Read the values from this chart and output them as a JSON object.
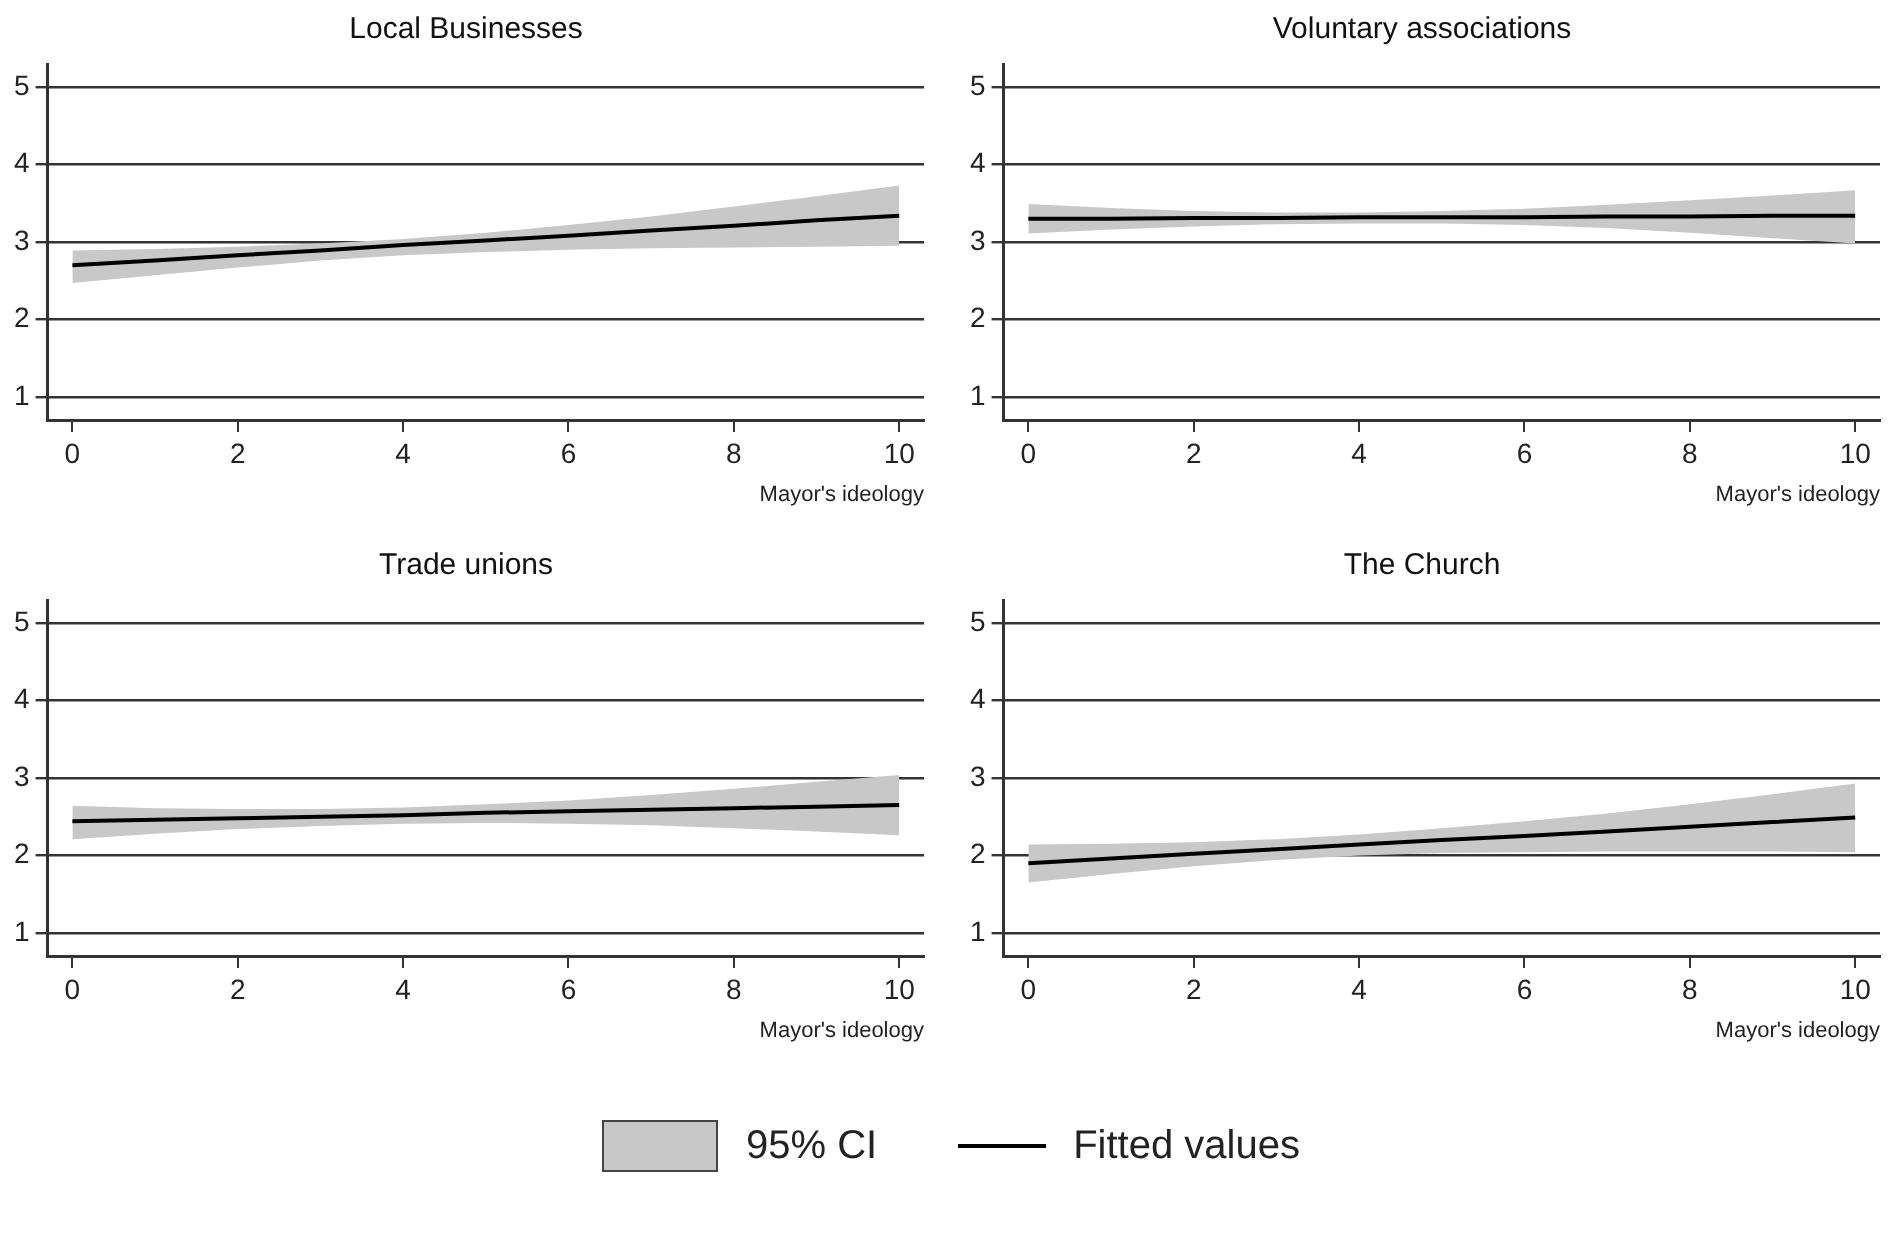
{
  "chart_data": [
    {
      "type": "line",
      "title": "Local Businesses",
      "xlabel": "Mayor's ideology",
      "x": [
        0,
        1,
        2,
        3,
        4,
        5,
        6,
        7,
        8,
        9,
        10
      ],
      "xlim": [
        -0.3,
        10.3
      ],
      "xticks": [
        0,
        2,
        4,
        6,
        8,
        10
      ],
      "ylim": [
        0.7,
        5.3
      ],
      "yticks": [
        1,
        2,
        3,
        4,
        5
      ],
      "grid": "y",
      "marker": "none",
      "series": [
        {
          "color": "#000000",
          "values": [
            2.7,
            2.76,
            2.83,
            2.89,
            2.96,
            3.02,
            3.08,
            3.15,
            3.21,
            3.28,
            3.34
          ],
          "lower": [
            2.47,
            2.57,
            2.67,
            2.76,
            2.83,
            2.87,
            2.9,
            2.92,
            2.93,
            2.94,
            2.95
          ],
          "upper": [
            2.89,
            2.91,
            2.94,
            2.98,
            3.04,
            3.12,
            3.22,
            3.33,
            3.46,
            3.59,
            3.73
          ]
        }
      ]
    },
    {
      "type": "line",
      "title": "Voluntary associations",
      "xlabel": "Mayor's ideology",
      "x": [
        0,
        1,
        2,
        3,
        4,
        5,
        6,
        7,
        8,
        9,
        10
      ],
      "xlim": [
        -0.3,
        10.3
      ],
      "xticks": [
        0,
        2,
        4,
        6,
        8,
        10
      ],
      "ylim": [
        0.7,
        5.3
      ],
      "yticks": [
        1,
        2,
        3,
        4,
        5
      ],
      "grid": "y",
      "marker": "none",
      "series": [
        {
          "color": "#000000",
          "values": [
            3.3,
            3.3,
            3.31,
            3.31,
            3.32,
            3.32,
            3.32,
            3.33,
            3.33,
            3.34,
            3.34
          ],
          "lower": [
            3.11,
            3.16,
            3.2,
            3.23,
            3.24,
            3.24,
            3.22,
            3.18,
            3.12,
            3.05,
            2.98
          ],
          "upper": [
            3.49,
            3.44,
            3.4,
            3.38,
            3.38,
            3.4,
            3.43,
            3.48,
            3.54,
            3.6,
            3.67
          ]
        }
      ]
    },
    {
      "type": "line",
      "title": "Trade unions",
      "xlabel": "Mayor's ideology",
      "x": [
        0,
        1,
        2,
        3,
        4,
        5,
        6,
        7,
        8,
        9,
        10
      ],
      "xlim": [
        -0.3,
        10.3
      ],
      "xticks": [
        0,
        2,
        4,
        6,
        8,
        10
      ],
      "ylim": [
        0.7,
        5.3
      ],
      "yticks": [
        1,
        2,
        3,
        4,
        5
      ],
      "grid": "y",
      "marker": "none",
      "series": [
        {
          "color": "#000000",
          "values": [
            2.44,
            2.46,
            2.48,
            2.5,
            2.52,
            2.55,
            2.57,
            2.59,
            2.61,
            2.63,
            2.65
          ],
          "lower": [
            2.21,
            2.28,
            2.34,
            2.38,
            2.41,
            2.42,
            2.41,
            2.39,
            2.35,
            2.31,
            2.26
          ],
          "upper": [
            2.64,
            2.61,
            2.6,
            2.6,
            2.62,
            2.66,
            2.71,
            2.78,
            2.86,
            2.95,
            3.04
          ]
        }
      ]
    },
    {
      "type": "line",
      "title": "The Church",
      "xlabel": "Mayor's ideology",
      "x": [
        0,
        1,
        2,
        3,
        4,
        5,
        6,
        7,
        8,
        9,
        10
      ],
      "xlim": [
        -0.3,
        10.3
      ],
      "xticks": [
        0,
        2,
        4,
        6,
        8,
        10
      ],
      "ylim": [
        0.7,
        5.3
      ],
      "yticks": [
        1,
        2,
        3,
        4,
        5
      ],
      "grid": "y",
      "marker": "none",
      "legend": "bottom",
      "annotations": [
        "95% CI"
      ],
      "series": [
        {
          "name": "Fitted values",
          "color": "#000000",
          "values": [
            1.9,
            1.96,
            2.02,
            2.08,
            2.14,
            2.2,
            2.25,
            2.31,
            2.37,
            2.43,
            2.49
          ],
          "lower": [
            1.65,
            1.76,
            1.86,
            1.94,
            2.0,
            2.03,
            2.04,
            2.05,
            2.05,
            2.05,
            2.04
          ],
          "upper": [
            2.14,
            2.15,
            2.17,
            2.21,
            2.27,
            2.35,
            2.44,
            2.54,
            2.66,
            2.79,
            2.93
          ]
        }
      ]
    }
  ]
}
